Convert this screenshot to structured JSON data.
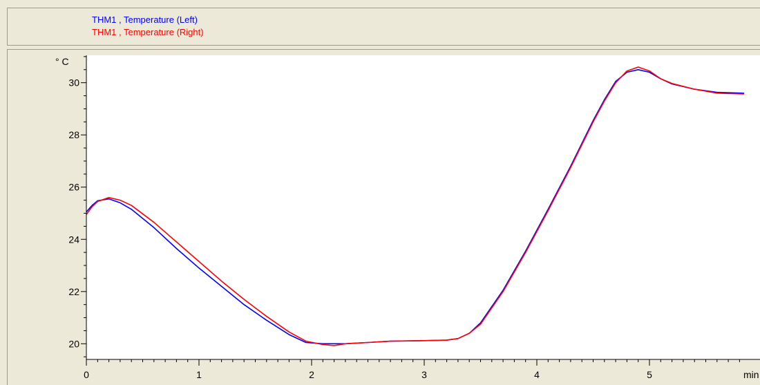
{
  "legend": {
    "entries": [
      {
        "label": "THM1 , Temperature (Left)",
        "color": "#0000ff"
      },
      {
        "label": "THM1 , Temperature (Right)",
        "color": "#ff0000"
      }
    ]
  },
  "chart_data": {
    "type": "line",
    "title": "",
    "xlabel": "min",
    "ylabel": "° C",
    "xlim": [
      0,
      5.84
    ],
    "ylim": [
      19.4,
      31.05
    ],
    "x_ticks": [
      0,
      1,
      2,
      3,
      4,
      5
    ],
    "y_ticks": [
      20,
      22,
      24,
      26,
      28,
      30
    ],
    "x_tick_labels": [
      "0",
      "1",
      "2",
      "3",
      "4",
      "5"
    ],
    "y_tick_labels": [
      "20",
      "22",
      "24",
      "26",
      "28",
      "30"
    ],
    "grid": false,
    "legend_position": "top",
    "series": [
      {
        "name": "THM1 , Temperature (Left)",
        "color": "#0000ff",
        "x": [
          0,
          0.05,
          0.1,
          0.2,
          0.3,
          0.4,
          0.6,
          0.8,
          1.0,
          1.2,
          1.4,
          1.6,
          1.8,
          1.95,
          2.1,
          2.3,
          2.5,
          2.7,
          3.0,
          3.2,
          3.3,
          3.4,
          3.5,
          3.7,
          3.9,
          4.1,
          4.3,
          4.5,
          4.6,
          4.7,
          4.8,
          4.9,
          5.0,
          5.1,
          5.2,
          5.4,
          5.6,
          5.84
        ],
        "y": [
          25.05,
          25.3,
          25.48,
          25.55,
          25.4,
          25.15,
          24.45,
          23.65,
          22.9,
          22.2,
          21.5,
          20.9,
          20.35,
          20.05,
          20.0,
          20.0,
          20.05,
          20.1,
          20.12,
          20.14,
          20.2,
          20.4,
          20.8,
          22.05,
          23.55,
          25.15,
          26.8,
          28.55,
          29.35,
          30.05,
          30.4,
          30.5,
          30.4,
          30.15,
          29.95,
          29.75,
          29.63,
          29.6
        ]
      },
      {
        "name": "THM1 , Temperature (Right)",
        "color": "#ff0000",
        "x": [
          0,
          0.05,
          0.1,
          0.2,
          0.3,
          0.4,
          0.6,
          0.8,
          1.0,
          1.2,
          1.4,
          1.6,
          1.8,
          1.95,
          2.1,
          2.2,
          2.3,
          2.5,
          2.7,
          3.0,
          3.2,
          3.3,
          3.4,
          3.5,
          3.7,
          3.9,
          4.1,
          4.3,
          4.5,
          4.6,
          4.7,
          4.8,
          4.9,
          5.0,
          5.1,
          5.2,
          5.4,
          5.6,
          5.84
        ],
        "y": [
          24.95,
          25.25,
          25.45,
          25.6,
          25.5,
          25.3,
          24.65,
          23.9,
          23.15,
          22.4,
          21.7,
          21.05,
          20.45,
          20.1,
          19.97,
          19.93,
          20.0,
          20.05,
          20.1,
          20.12,
          20.14,
          20.2,
          20.4,
          20.75,
          22.0,
          23.5,
          25.1,
          26.75,
          28.5,
          29.3,
          30.0,
          30.45,
          30.6,
          30.45,
          30.15,
          29.97,
          29.75,
          29.6,
          29.57
        ]
      }
    ]
  }
}
